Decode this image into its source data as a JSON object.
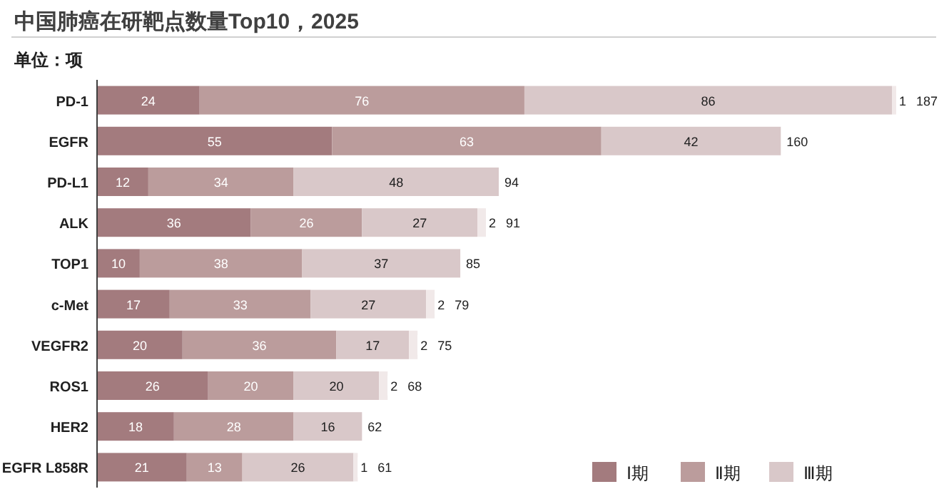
{
  "chart_data": {
    "type": "bar",
    "orientation": "horizontal",
    "stacked": true,
    "title": "中国肺癌在研靶点数量Top10，2025",
    "subtitle": "单位：项",
    "categories": [
      "PD-1",
      "EGFR",
      "PD-L1",
      "ALK",
      "TOP1",
      "c-Met",
      "VEGFR2",
      "ROS1",
      "HER2",
      "EGFR L858R"
    ],
    "series": [
      {
        "name": "Ⅰ期",
        "color": "#a37b7e",
        "values": [
          24,
          55,
          12,
          36,
          10,
          17,
          20,
          26,
          18,
          21
        ]
      },
      {
        "name": "Ⅱ期",
        "color": "#bb9c9c",
        "values": [
          76,
          63,
          34,
          26,
          38,
          33,
          36,
          20,
          28,
          13
        ]
      },
      {
        "name": "Ⅲ期",
        "color": "#d9c8c9",
        "values": [
          86,
          42,
          48,
          27,
          37,
          27,
          17,
          20,
          16,
          26
        ]
      },
      {
        "color": "#f1e9e9",
        "values": [
          1,
          null,
          null,
          2,
          null,
          2,
          2,
          2,
          null,
          1
        ]
      }
    ],
    "totals": [
      "187",
      "160",
      "94",
      "91",
      "85",
      "79",
      "75",
      "68",
      "62",
      "61"
    ],
    "data_labels": true,
    "tick_labels": "y",
    "legend": "bottom right"
  }
}
